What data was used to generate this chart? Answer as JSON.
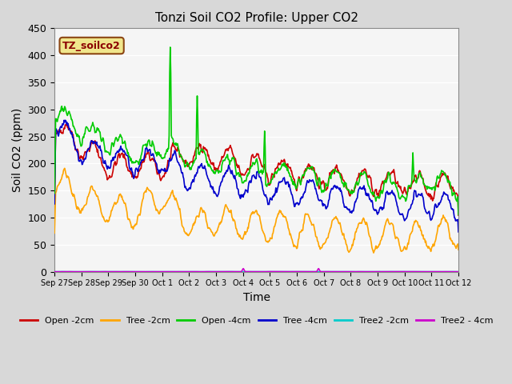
{
  "title": "Tonzi Soil CO2 Profile: Upper CO2",
  "xlabel": "Time",
  "ylabel": "Soil CO2 (ppm)",
  "ylim": [
    0,
    450
  ],
  "yticks": [
    0,
    50,
    100,
    150,
    200,
    250,
    300,
    350,
    400,
    450
  ],
  "legend_label": "TZ_soilco2",
  "legend_label_color": "#8b0000",
  "legend_box_color": "#f0e68c",
  "legend_box_edge_color": "#8b4513",
  "axes_bg_color": "#f5f5f5",
  "grid_color": "#ffffff",
  "colors": {
    "open_2cm": "#cc0000",
    "tree_2cm": "#ffa500",
    "open_4cm": "#00cc00",
    "tree_4cm": "#0000cc",
    "tree2_2cm": "#00cccc",
    "tree2_4cm": "#cc00cc"
  },
  "x_tick_labels": [
    "Sep 27",
    "Sep 28",
    "Sep 29",
    "Sep 30",
    "Oct 1",
    "Oct 2",
    "Oct 3",
    "Oct 4",
    "Oct 5",
    "Oct 6",
    "Oct 7",
    "Oct 8",
    "Oct 9",
    "Oct 10",
    "Oct 11",
    "Oct 12"
  ],
  "n_days": 15,
  "points_per_day": 48
}
